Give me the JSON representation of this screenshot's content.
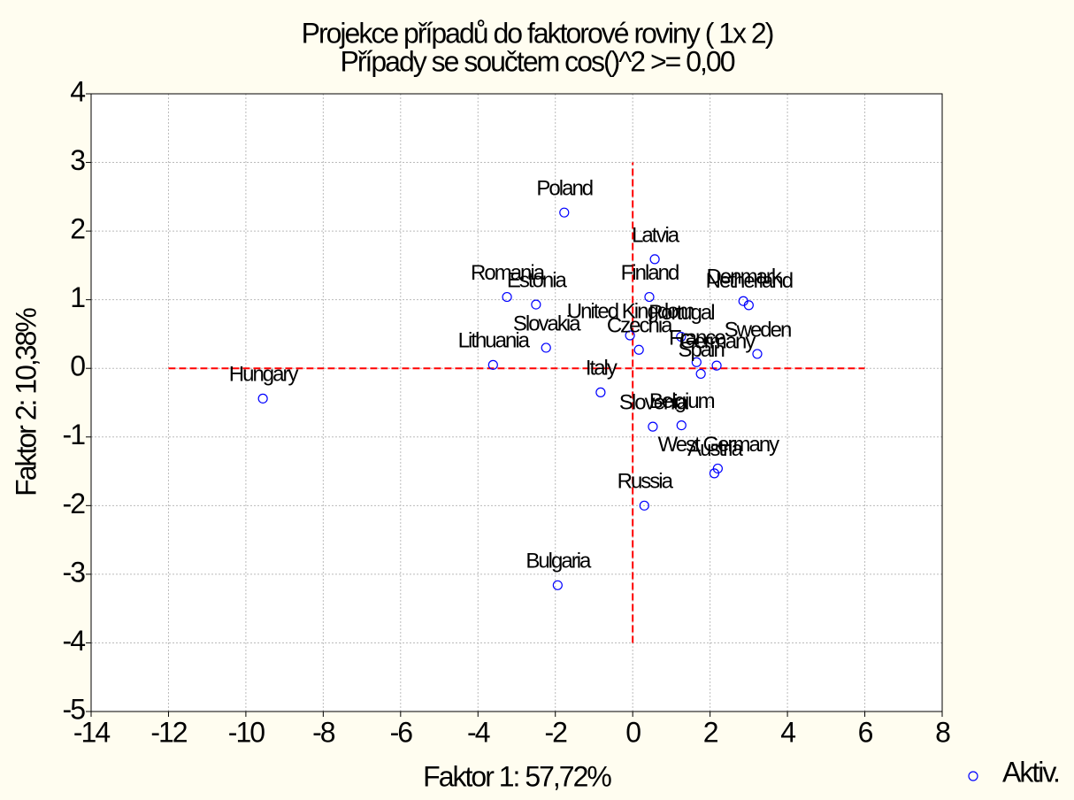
{
  "chart_data": {
    "type": "scatter",
    "title": "Projekce případů do faktorové roviny    ( 1x 2)",
    "subtitle": "Případy se součtem cos()^2 >=   0,00",
    "xlabel": "Faktor 1: 57,72%",
    "ylabel": "Faktor 2: 10,38%",
    "series": [
      {
        "name": "Aktiv.",
        "color": "#0000ff",
        "labels": [
          "Hungary",
          "Poland",
          "Latvia",
          "Romania",
          "Estonia",
          "Finland",
          "Denmark",
          "Netherland",
          "Slovakia",
          "Lithuania",
          "United Kingdom",
          "Czechia",
          "Portugal",
          "France",
          "Germany",
          "Spain",
          "Sweden",
          "Italy",
          "Slovenia",
          "Belgium",
          "West Germany",
          "Austria",
          "Russia",
          "Bulgaria"
        ],
        "x": [
          -9.56,
          -1.77,
          0.57,
          -3.25,
          -2.5,
          0.43,
          2.86,
          3.0,
          -2.24,
          -3.61,
          -0.07,
          0.16,
          1.25,
          1.65,
          2.17,
          1.76,
          3.22,
          -0.83,
          0.52,
          1.26,
          2.2,
          2.11,
          0.3,
          -1.94
        ],
        "values": [
          -0.44,
          2.27,
          1.59,
          1.04,
          0.93,
          1.04,
          0.98,
          0.92,
          0.3,
          0.05,
          0.48,
          0.27,
          0.46,
          0.09,
          0.04,
          -0.08,
          0.21,
          -0.35,
          -0.85,
          -0.83,
          -1.46,
          -1.53,
          -2.0,
          -3.16
        ]
      }
    ],
    "xlim": [
      -14,
      8
    ],
    "xticks": [
      -14,
      -12,
      -10,
      -8,
      -6,
      -4,
      -2,
      0,
      2,
      4,
      6,
      8
    ],
    "ylim": [
      -5,
      4
    ],
    "yticks": [
      -5,
      -4,
      -3,
      -2,
      -1,
      0,
      1,
      2,
      3,
      4
    ],
    "grid": true,
    "legend": "bottom-right",
    "reference_lines": {
      "color": "#ff0000",
      "hline": {
        "value": 0,
        "from": -12,
        "to": 6
      },
      "vline": {
        "value": 0,
        "from": -4,
        "to": 3
      }
    }
  }
}
